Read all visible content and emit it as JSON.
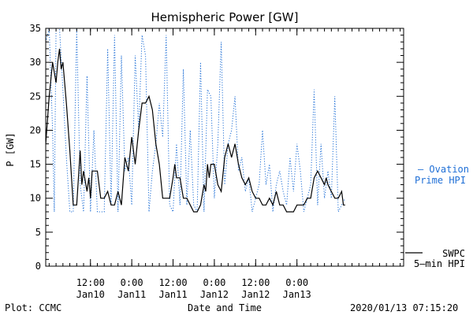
{
  "chart_data": {
    "type": "line",
    "title": "Hemispheric Power [GW]",
    "ylabel": "P [GW]",
    "xlabel": "Date and Time",
    "ylim": [
      0,
      35
    ],
    "yticks": [
      0,
      5,
      10,
      15,
      20,
      25,
      30,
      35
    ],
    "x_unit": "hours since 2020/01/09 23:00",
    "xlim": [
      0,
      104
    ],
    "xticks": [
      {
        "x": 13,
        "time": "12:00",
        "date": "Jan10"
      },
      {
        "x": 25,
        "time": "0:00",
        "date": "Jan11"
      },
      {
        "x": 37,
        "time": "12:00",
        "date": "Jan11"
      },
      {
        "x": 49,
        "time": "0:00",
        "date": "Jan12"
      },
      {
        "x": 61,
        "time": "12:00",
        "date": "Jan12"
      },
      {
        "x": 73,
        "time": "0:00",
        "date": "Jan13"
      }
    ],
    "footer_left": "Plot: CCMC",
    "footer_right": "2020/01/13 07:15:20",
    "series": [
      {
        "name": "SWPC 5-min HPI",
        "legend_lines": [
          "SWPC",
          "5—min HPI"
        ],
        "color": "#000000",
        "style": "solid",
        "points": [
          [
            0,
            18
          ],
          [
            1,
            25
          ],
          [
            2,
            30
          ],
          [
            3,
            27
          ],
          [
            3.5,
            30
          ],
          [
            4,
            32
          ],
          [
            4.5,
            29
          ],
          [
            5,
            30
          ],
          [
            6,
            24
          ],
          [
            7,
            17
          ],
          [
            8,
            9
          ],
          [
            9,
            9
          ],
          [
            10,
            17
          ],
          [
            10.5,
            12
          ],
          [
            11,
            14
          ],
          [
            12,
            11
          ],
          [
            12.5,
            13
          ],
          [
            13,
            10
          ],
          [
            13.5,
            14
          ],
          [
            14,
            14
          ],
          [
            15,
            14
          ],
          [
            16,
            10
          ],
          [
            17,
            10
          ],
          [
            18,
            11
          ],
          [
            19,
            9
          ],
          [
            20,
            9
          ],
          [
            21,
            11
          ],
          [
            22,
            9
          ],
          [
            23,
            16
          ],
          [
            24,
            14
          ],
          [
            25,
            19
          ],
          [
            26,
            15
          ],
          [
            27,
            20
          ],
          [
            28,
            24
          ],
          [
            29,
            24
          ],
          [
            30,
            25
          ],
          [
            31,
            23
          ],
          [
            32,
            18
          ],
          [
            33,
            15
          ],
          [
            34,
            10
          ],
          [
            35,
            10
          ],
          [
            36,
            10
          ],
          [
            37,
            13
          ],
          [
            37.5,
            15
          ],
          [
            38,
            13
          ],
          [
            39,
            13
          ],
          [
            40,
            10
          ],
          [
            41,
            10
          ],
          [
            42,
            9
          ],
          [
            43,
            8
          ],
          [
            44,
            8
          ],
          [
            45,
            9
          ],
          [
            46,
            12
          ],
          [
            46.5,
            11
          ],
          [
            47,
            15
          ],
          [
            47.5,
            13
          ],
          [
            48,
            15
          ],
          [
            49,
            15
          ],
          [
            50,
            12
          ],
          [
            51,
            11
          ],
          [
            52,
            16
          ],
          [
            53,
            18
          ],
          [
            54,
            16
          ],
          [
            55,
            18
          ],
          [
            56,
            15
          ],
          [
            57,
            13
          ],
          [
            58,
            12
          ],
          [
            59,
            13
          ],
          [
            60,
            11
          ],
          [
            61,
            10
          ],
          [
            62,
            10
          ],
          [
            63,
            9
          ],
          [
            64,
            9
          ],
          [
            65,
            10
          ],
          [
            66,
            9
          ],
          [
            67,
            11
          ],
          [
            68,
            9
          ],
          [
            69,
            9
          ],
          [
            70,
            8
          ],
          [
            71,
            8
          ],
          [
            72,
            8
          ],
          [
            73,
            9
          ],
          [
            74,
            9
          ],
          [
            75,
            9
          ],
          [
            76,
            10
          ],
          [
            77,
            10
          ],
          [
            78,
            13
          ],
          [
            79,
            14
          ],
          [
            80,
            13
          ],
          [
            81,
            12
          ],
          [
            81.5,
            13
          ],
          [
            82,
            12
          ],
          [
            83,
            11
          ],
          [
            84,
            10
          ],
          [
            85,
            10
          ],
          [
            86,
            11
          ],
          [
            86.5,
            9
          ],
          [
            87,
            9
          ]
        ]
      },
      {
        "name": "Ovation Prime HPI",
        "legend_lines": [
          "— Ovation",
          "Prime HPI"
        ],
        "color": "#1f6fd6",
        "style": "dotted",
        "points": [
          [
            0,
            33
          ],
          [
            1,
            35
          ],
          [
            2,
            20
          ],
          [
            2.5,
            8
          ],
          [
            3,
            35
          ],
          [
            4,
            35
          ],
          [
            5,
            26
          ],
          [
            6,
            16
          ],
          [
            7,
            8
          ],
          [
            8,
            8
          ],
          [
            9,
            35
          ],
          [
            10,
            12
          ],
          [
            11,
            8
          ],
          [
            12,
            28
          ],
          [
            13,
            8
          ],
          [
            14,
            20
          ],
          [
            15,
            8
          ],
          [
            16,
            8
          ],
          [
            17,
            8
          ],
          [
            18,
            32
          ],
          [
            19,
            9
          ],
          [
            20,
            34
          ],
          [
            21,
            8
          ],
          [
            22,
            31
          ],
          [
            23,
            14
          ],
          [
            24,
            16
          ],
          [
            25,
            9
          ],
          [
            26,
            31
          ],
          [
            27,
            20
          ],
          [
            28,
            34
          ],
          [
            29,
            31
          ],
          [
            30,
            8
          ],
          [
            31,
            14
          ],
          [
            32,
            18
          ],
          [
            33,
            24
          ],
          [
            34,
            19
          ],
          [
            35,
            34
          ],
          [
            36,
            9
          ],
          [
            37,
            8
          ],
          [
            38,
            18
          ],
          [
            39,
            9
          ],
          [
            40,
            29
          ],
          [
            41,
            9
          ],
          [
            42,
            20
          ],
          [
            43,
            9
          ],
          [
            44,
            8
          ],
          [
            45,
            30
          ],
          [
            46,
            8
          ],
          [
            47,
            26
          ],
          [
            48,
            25
          ],
          [
            49,
            10
          ],
          [
            50,
            18
          ],
          [
            51,
            33
          ],
          [
            52,
            12
          ],
          [
            53,
            18
          ],
          [
            54,
            20
          ],
          [
            55,
            25
          ],
          [
            56,
            14
          ],
          [
            57,
            16
          ],
          [
            58,
            11
          ],
          [
            59,
            13
          ],
          [
            60,
            8
          ],
          [
            61,
            10
          ],
          [
            62,
            12
          ],
          [
            63,
            20
          ],
          [
            64,
            12
          ],
          [
            65,
            15
          ],
          [
            66,
            8
          ],
          [
            67,
            12
          ],
          [
            68,
            14
          ],
          [
            69,
            11
          ],
          [
            70,
            9
          ],
          [
            71,
            16
          ],
          [
            72,
            11
          ],
          [
            73,
            18
          ],
          [
            74,
            14
          ],
          [
            75,
            8
          ],
          [
            76,
            10
          ],
          [
            77,
            12
          ],
          [
            78,
            26
          ],
          [
            79,
            9
          ],
          [
            80,
            18
          ],
          [
            81,
            10
          ],
          [
            82,
            14
          ],
          [
            83,
            10
          ],
          [
            84,
            25
          ],
          [
            85,
            8
          ],
          [
            86,
            9
          ],
          [
            87,
            10
          ]
        ]
      }
    ]
  }
}
